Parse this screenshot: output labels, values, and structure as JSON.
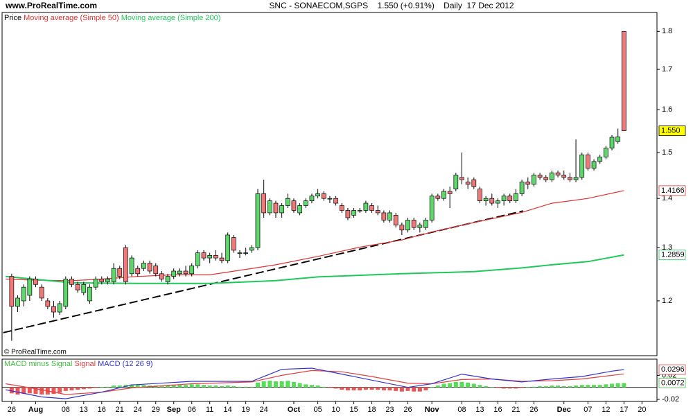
{
  "site": "www.ProRealTime.com",
  "chart_data": [
    {
      "type": "candlestick",
      "title": "SNC - SONAECOM,SGPS    1.550 (+0.91%)    Daily  17 Dec 2012",
      "name": "Price",
      "watermark": "© ProRealTime.com",
      "log_scale": true,
      "xlim": [
        -1.6,
        107.5
      ],
      "ylim": [
        1.105,
        1.852
      ],
      "yticks": [
        1.2,
        1.3,
        1.4,
        1.5,
        1.6,
        1.7,
        1.8
      ],
      "up_color": "#5ed86a",
      "down_color": "#f07878",
      "open": [
        1.245,
        1.19,
        1.2,
        1.21,
        1.24,
        1.225,
        1.2,
        1.19,
        1.18,
        1.19,
        1.24,
        1.23,
        1.215,
        1.2,
        1.225,
        1.24,
        1.235,
        1.235,
        1.26,
        1.3,
        1.25,
        1.26,
        1.26,
        1.27,
        1.265,
        1.25,
        1.235,
        1.245,
        1.25,
        1.255,
        1.25,
        1.265,
        1.29,
        1.28,
        1.285,
        1.28,
        1.275,
        1.32,
        1.29,
        1.29,
        1.295,
        1.3,
        1.41,
        1.37,
        1.39,
        1.37,
        1.385,
        1.395,
        1.37,
        1.385,
        1.395,
        1.405,
        1.41,
        1.4,
        1.4,
        1.385,
        1.375,
        1.365,
        1.375,
        1.375,
        1.385,
        1.375,
        1.37,
        1.355,
        1.365,
        1.345,
        1.335,
        1.355,
        1.34,
        1.34,
        1.355,
        1.405,
        1.4,
        1.415,
        1.42,
        1.445,
        1.435,
        1.44,
        1.42,
        1.395,
        1.4,
        1.39,
        1.395,
        1.405,
        1.395,
        1.41,
        1.435,
        1.43,
        1.45,
        1.445,
        1.44,
        1.455,
        1.45,
        1.445,
        1.44,
        1.445,
        1.495,
        1.465,
        1.48,
        1.49,
        1.51,
        1.525,
        1.8
      ],
      "high": [
        1.25,
        1.21,
        1.23,
        1.245,
        1.245,
        1.23,
        1.205,
        1.2,
        1.2,
        1.245,
        1.245,
        1.235,
        1.235,
        1.23,
        1.245,
        1.245,
        1.245,
        1.27,
        1.265,
        1.305,
        1.285,
        1.265,
        1.275,
        1.275,
        1.27,
        1.255,
        1.25,
        1.26,
        1.26,
        1.265,
        1.27,
        1.295,
        1.295,
        1.29,
        1.295,
        1.29,
        1.33,
        1.325,
        1.295,
        1.3,
        1.305,
        1.42,
        1.44,
        1.4,
        1.395,
        1.39,
        1.41,
        1.4,
        1.39,
        1.4,
        1.41,
        1.42,
        1.415,
        1.405,
        1.405,
        1.39,
        1.38,
        1.38,
        1.38,
        1.395,
        1.39,
        1.385,
        1.375,
        1.375,
        1.37,
        1.35,
        1.36,
        1.36,
        1.35,
        1.36,
        1.41,
        1.41,
        1.42,
        1.425,
        1.455,
        1.5,
        1.445,
        1.445,
        1.425,
        1.405,
        1.41,
        1.4,
        1.41,
        1.41,
        1.42,
        1.44,
        1.445,
        1.455,
        1.455,
        1.45,
        1.46,
        1.46,
        1.46,
        1.455,
        1.53,
        1.5,
        1.5,
        1.485,
        1.495,
        1.515,
        1.54,
        1.555,
        1.8
      ],
      "low": [
        1.13,
        1.18,
        1.19,
        1.2,
        1.225,
        1.2,
        1.185,
        1.17,
        1.175,
        1.185,
        1.225,
        1.215,
        1.21,
        1.195,
        1.22,
        1.23,
        1.23,
        1.23,
        1.24,
        1.23,
        1.245,
        1.245,
        1.255,
        1.25,
        1.245,
        1.235,
        1.23,
        1.24,
        1.245,
        1.245,
        1.245,
        1.26,
        1.275,
        1.27,
        1.275,
        1.27,
        1.27,
        1.29,
        1.28,
        1.285,
        1.29,
        1.295,
        1.36,
        1.365,
        1.36,
        1.36,
        1.38,
        1.37,
        1.365,
        1.38,
        1.39,
        1.4,
        1.395,
        1.39,
        1.385,
        1.37,
        1.355,
        1.36,
        1.37,
        1.37,
        1.37,
        1.365,
        1.35,
        1.35,
        1.34,
        1.325,
        1.33,
        1.335,
        1.33,
        1.335,
        1.35,
        1.395,
        1.395,
        1.38,
        1.415,
        1.43,
        1.42,
        1.42,
        1.39,
        1.385,
        1.385,
        1.38,
        1.385,
        1.39,
        1.39,
        1.405,
        1.42,
        1.425,
        1.44,
        1.435,
        1.435,
        1.445,
        1.44,
        1.435,
        1.435,
        1.44,
        1.46,
        1.46,
        1.475,
        1.485,
        1.505,
        1.52,
        1.55
      ],
      "close": [
        1.19,
        1.205,
        1.225,
        1.24,
        1.23,
        1.205,
        1.19,
        1.18,
        1.195,
        1.24,
        1.23,
        1.22,
        1.23,
        1.225,
        1.24,
        1.235,
        1.24,
        1.26,
        1.245,
        1.235,
        1.28,
        1.25,
        1.27,
        1.255,
        1.25,
        1.24,
        1.245,
        1.255,
        1.255,
        1.25,
        1.265,
        1.29,
        1.28,
        1.285,
        1.28,
        1.275,
        1.325,
        1.295,
        1.29,
        1.29,
        1.3,
        1.41,
        1.37,
        1.395,
        1.37,
        1.385,
        1.4,
        1.375,
        1.385,
        1.395,
        1.405,
        1.41,
        1.4,
        1.4,
        1.39,
        1.375,
        1.36,
        1.375,
        1.375,
        1.39,
        1.375,
        1.37,
        1.355,
        1.37,
        1.345,
        1.335,
        1.355,
        1.34,
        1.345,
        1.355,
        1.405,
        1.4,
        1.415,
        1.41,
        1.45,
        1.44,
        1.43,
        1.425,
        1.395,
        1.4,
        1.39,
        1.395,
        1.405,
        1.395,
        1.41,
        1.435,
        1.43,
        1.45,
        1.445,
        1.44,
        1.455,
        1.45,
        1.445,
        1.44,
        1.445,
        1.495,
        1.465,
        1.48,
        1.49,
        1.51,
        1.535,
        1.536,
        1.55
      ],
      "last_price": {
        "value": 1.55,
        "label": "1.550"
      },
      "series": [
        {
          "name": "Moving average (Simple 50)",
          "color": "#e03030",
          "x": [
            -1,
            4,
            10,
            15,
            21,
            27,
            33,
            44,
            51,
            58,
            65,
            70,
            77,
            85,
            90,
            96,
            102
          ],
          "values": [
            1.24,
            1.238,
            1.237,
            1.24,
            1.245,
            1.248,
            1.248,
            1.267,
            1.283,
            1.301,
            1.315,
            1.331,
            1.35,
            1.371,
            1.39,
            1.4,
            1.4166
          ]
        },
        {
          "name": "Moving average (Simple 200)",
          "color": "#1fc85a",
          "x": [
            -1,
            10,
            21,
            33,
            44,
            51,
            65,
            77,
            85,
            90,
            96,
            102
          ],
          "values": [
            1.245,
            1.233,
            1.232,
            1.232,
            1.237,
            1.244,
            1.25,
            1.254,
            1.261,
            1.267,
            1.273,
            1.2859
          ]
        }
      ],
      "trendline": {
        "x": [
          -1.4,
          85.2
        ],
        "values": [
          1.144,
          1.374
        ]
      }
    },
    {
      "type": "macd",
      "xlim": [
        -1.6,
        107.5
      ],
      "ylim": [
        -0.0235,
        0.047
      ],
      "yticks": [
        -0.02,
        0.02
      ],
      "xticks": [
        {
          "value": 0,
          "label": "26"
        },
        {
          "value": 4,
          "label": "Aug"
        },
        {
          "value": 9,
          "label": "08"
        },
        {
          "value": 12,
          "label": "13"
        },
        {
          "value": 15,
          "label": "16"
        },
        {
          "value": 18,
          "label": "21"
        },
        {
          "value": 21,
          "label": "24"
        },
        {
          "value": 24,
          "label": "29"
        },
        {
          "value": 27,
          "label": "Sep"
        },
        {
          "value": 30,
          "label": "06"
        },
        {
          "value": 33,
          "label": "11"
        },
        {
          "value": 36,
          "label": "14"
        },
        {
          "value": 39,
          "label": "19"
        },
        {
          "value": 42,
          "label": "24"
        },
        {
          "value": 47,
          "label": "Oct"
        },
        {
          "value": 51,
          "label": "05"
        },
        {
          "value": 54,
          "label": "10"
        },
        {
          "value": 57,
          "label": "15"
        },
        {
          "value": 60,
          "label": "18"
        },
        {
          "value": 63,
          "label": "23"
        },
        {
          "value": 66,
          "label": "26"
        },
        {
          "value": 70,
          "label": "Nov"
        },
        {
          "value": 75,
          "label": "08"
        },
        {
          "value": 78,
          "label": "13"
        },
        {
          "value": 81,
          "label": "16"
        },
        {
          "value": 84,
          "label": "21"
        },
        {
          "value": 87,
          "label": "26"
        },
        {
          "value": 92,
          "label": "Dec"
        },
        {
          "value": 96,
          "label": "07"
        },
        {
          "value": 99,
          "label": "12"
        },
        {
          "value": 102,
          "label": "17"
        },
        {
          "value": 105,
          "label": "20"
        }
      ],
      "histogram": {
        "name": "MACD minus Signal",
        "color": "#3fbf3f",
        "up_color": "#55dd55",
        "down_color": "#ee5555",
        "values": [
          -0.01,
          -0.012,
          -0.011,
          -0.01,
          -0.011,
          -0.012,
          -0.012,
          -0.011,
          -0.009,
          -0.006,
          -0.005,
          -0.004,
          -0.003,
          -0.002,
          -0.001,
          0.0,
          0.001,
          0.003,
          0.003,
          0.004,
          0.005,
          0.004,
          0.004,
          0.003,
          0.003,
          0.003,
          0.004,
          0.004,
          0.004,
          0.004,
          0.005,
          0.005,
          0.004,
          0.003,
          0.003,
          0.002,
          0.003,
          0.002,
          0.001,
          0.001,
          0.001,
          0.008,
          0.01,
          0.011,
          0.01,
          0.01,
          0.011,
          0.009,
          0.007,
          0.005,
          0.004,
          0.003,
          0.001,
          -0.001,
          -0.002,
          -0.004,
          -0.005,
          -0.005,
          -0.005,
          -0.004,
          -0.004,
          -0.004,
          -0.005,
          -0.005,
          -0.006,
          -0.007,
          -0.006,
          -0.007,
          -0.007,
          -0.005,
          0.0,
          0.003,
          0.006,
          0.007,
          0.009,
          0.009,
          0.008,
          0.006,
          0.004,
          0.002,
          0.0,
          -0.001,
          -0.002,
          -0.002,
          -0.002,
          -0.001,
          0.0,
          0.001,
          0.002,
          0.002,
          0.003,
          0.003,
          0.002,
          0.002,
          0.003,
          0.004,
          0.004,
          0.004,
          0.004,
          0.005,
          0.006,
          0.007,
          0.0072
        ]
      },
      "series": [
        {
          "name": "Signal",
          "color": "#e04040",
          "x": [
            -1,
            5,
            9,
            15,
            20,
            30,
            40,
            45,
            50,
            55,
            60,
            66,
            70,
            75,
            80,
            85,
            90,
            95,
            100,
            102
          ],
          "values": [
            0.006,
            -0.004,
            -0.012,
            -0.008,
            -0.001,
            0.006,
            0.009,
            0.02,
            0.028,
            0.026,
            0.018,
            0.007,
            0.006,
            0.013,
            0.014,
            0.01,
            0.011,
            0.014,
            0.02,
            0.0224
          ]
        },
        {
          "name": "MACD (12 26 9)",
          "color": "#3333cc",
          "x": [
            -1,
            5,
            9,
            15,
            20,
            30,
            40,
            45,
            50,
            55,
            60,
            66,
            70,
            75,
            80,
            85,
            90,
            95,
            100,
            102
          ],
          "values": [
            -0.004,
            -0.016,
            -0.019,
            -0.008,
            0.004,
            0.01,
            0.01,
            0.03,
            0.032,
            0.022,
            0.012,
            0.0,
            0.006,
            0.022,
            0.014,
            0.009,
            0.014,
            0.018,
            0.027,
            0.0296
          ]
        }
      ]
    }
  ]
}
